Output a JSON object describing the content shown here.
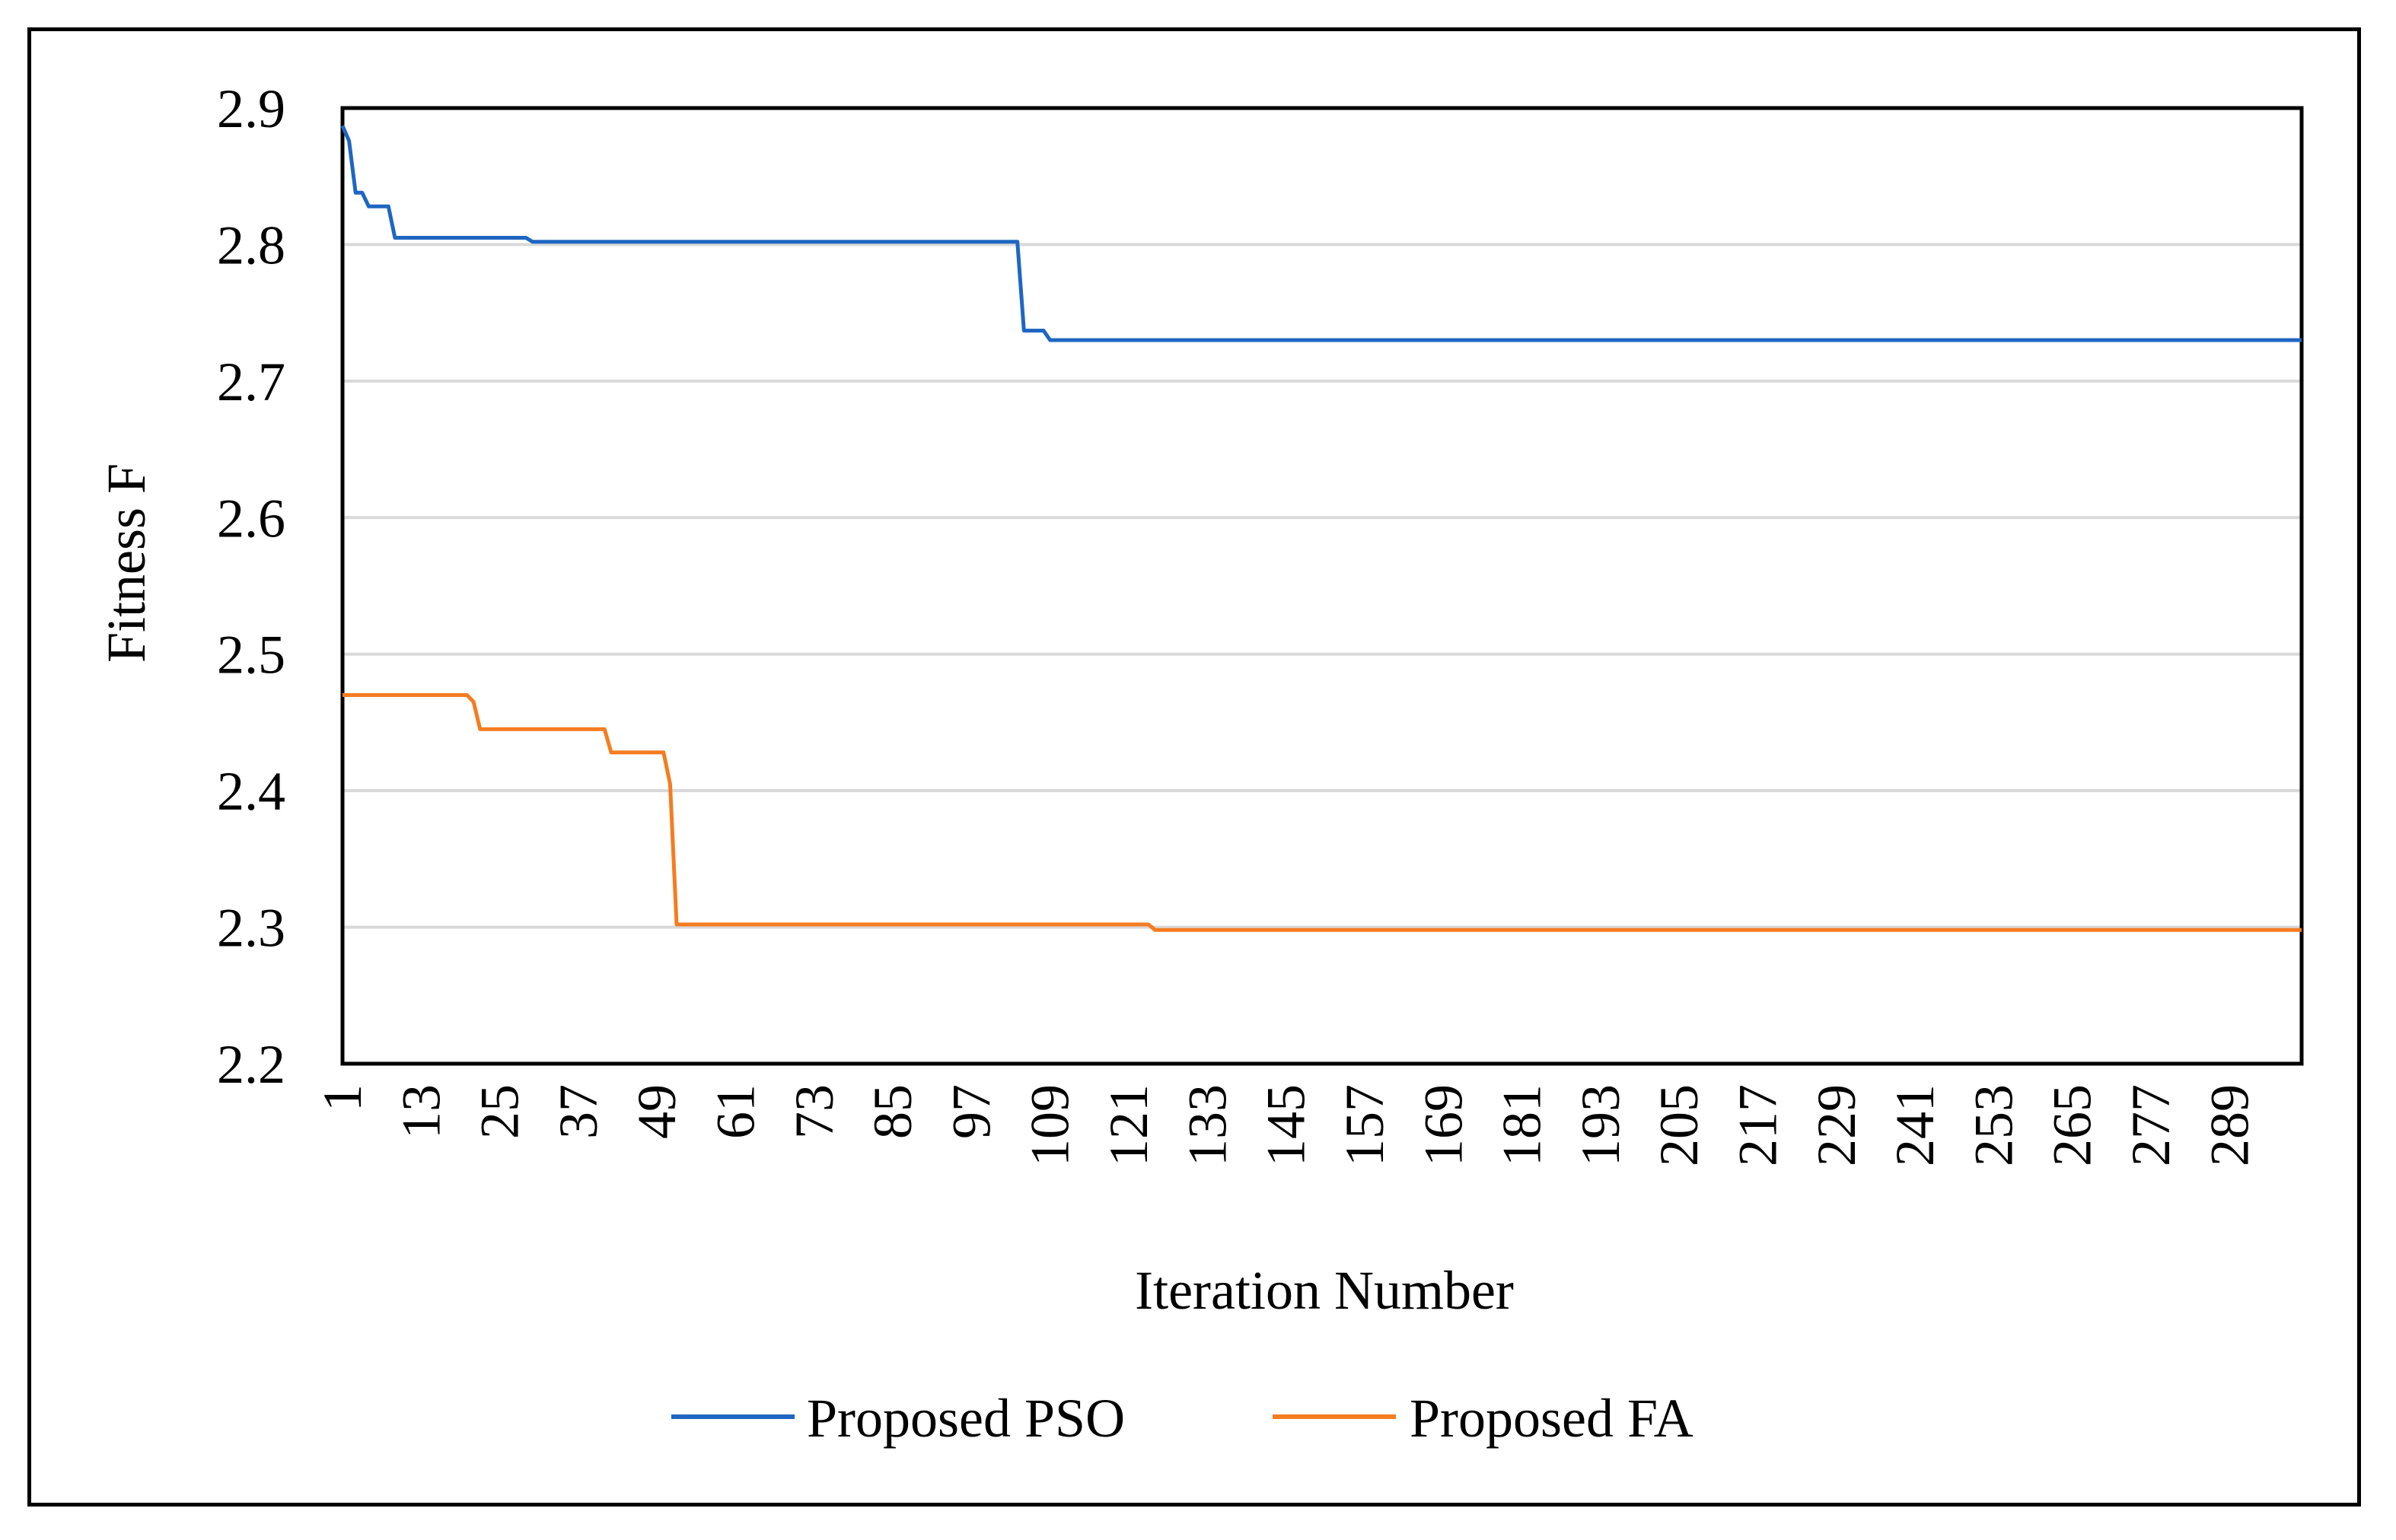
{
  "chart_data": {
    "type": "line",
    "title": "",
    "xlabel": "Iteration Number",
    "ylabel": "Fitness F",
    "xlim": [
      1,
      300
    ],
    "ylim": [
      2.2,
      2.9
    ],
    "y_ticks": [
      "2.9",
      "2.8",
      "2.7",
      "2.6",
      "2.5",
      "2.4",
      "2.3",
      "2.2"
    ],
    "y_tick_values": [
      2.9,
      2.8,
      2.7,
      2.6,
      2.5,
      2.4,
      2.3,
      2.2
    ],
    "x_ticks": [
      "1",
      "13",
      "25",
      "37",
      "49",
      "61",
      "73",
      "85",
      "97",
      "109",
      "121",
      "133",
      "145",
      "157",
      "169",
      "181",
      "193",
      "205",
      "217",
      "229",
      "241",
      "253",
      "265",
      "277",
      "289"
    ],
    "x_tick_values": [
      1,
      13,
      25,
      37,
      49,
      61,
      73,
      85,
      97,
      109,
      121,
      133,
      145,
      157,
      169,
      181,
      193,
      205,
      217,
      229,
      241,
      253,
      265,
      277,
      289
    ],
    "grid": true,
    "legend_position": "bottom",
    "series": [
      {
        "name": "Proposed PSO",
        "color": "#1f66c2",
        "points": [
          [
            1,
            2.887
          ],
          [
            2,
            2.876
          ],
          [
            3,
            2.838
          ],
          [
            4,
            2.838
          ],
          [
            5,
            2.828
          ],
          [
            8,
            2.828
          ],
          [
            9,
            2.805
          ],
          [
            29,
            2.805
          ],
          [
            30,
            2.802
          ],
          [
            104,
            2.802
          ],
          [
            105,
            2.737
          ],
          [
            108,
            2.737
          ],
          [
            109,
            2.73
          ],
          [
            300,
            2.73
          ]
        ]
      },
      {
        "name": "Proposed FA",
        "color": "#f57c20",
        "points": [
          [
            1,
            2.47
          ],
          [
            20,
            2.47
          ],
          [
            21,
            2.465
          ],
          [
            22,
            2.445
          ],
          [
            41,
            2.445
          ],
          [
            42,
            2.428
          ],
          [
            50,
            2.428
          ],
          [
            51,
            2.405
          ],
          [
            52,
            2.302
          ],
          [
            124,
            2.302
          ],
          [
            125,
            2.298
          ],
          [
            300,
            2.298
          ]
        ]
      }
    ]
  }
}
